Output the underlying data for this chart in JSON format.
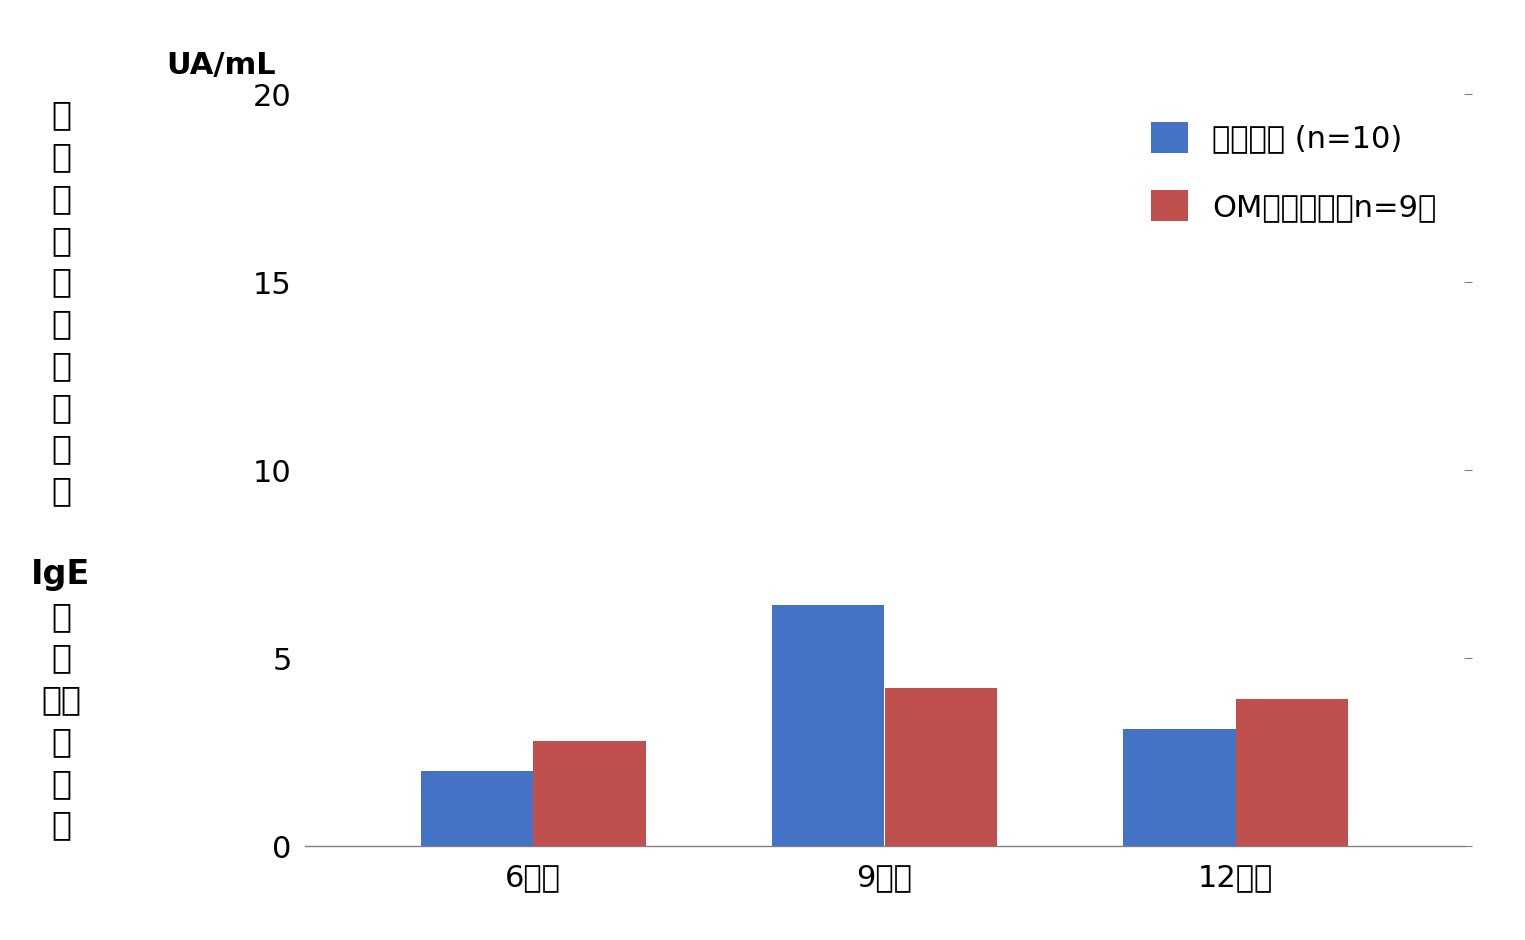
{
  "categories": [
    "6カ月",
    "9カ月",
    "12カ月"
  ],
  "series": [
    {
      "label": "加熱卵群 (n=10)",
      "values": [
        2.0,
        6.4,
        3.1
      ],
      "color": "#4472C4"
    },
    {
      "label": "OM減量卵群（n=9）",
      "values": [
        2.8,
        4.2,
        3.9
      ],
      "color": "#C0504D"
    }
  ],
  "ylabel_top": "UA/mL",
  "ylabel_chars": [
    "卵",
    "ア",
    "レ",
    "ル",
    "ゲ",
    "ン",
    "に",
    "対",
    "す",
    "る",
    " ",
    "IgE",
    "抗",
    "体",
    "（中",
    "央",
    "値",
    "）"
  ],
  "ylim": [
    0,
    20
  ],
  "yticks": [
    0,
    5,
    10,
    15,
    20
  ],
  "bar_width": 0.32,
  "background_color": "#FFFFFF",
  "legend_label_1": "加熱卵群 (n=10)",
  "legend_label_2": "OM減量卵群（n=9）",
  "tick_fontsize": 22,
  "legend_fontsize": 22,
  "ylabel_fontsize": 24,
  "ua_ml_fontsize": 22
}
